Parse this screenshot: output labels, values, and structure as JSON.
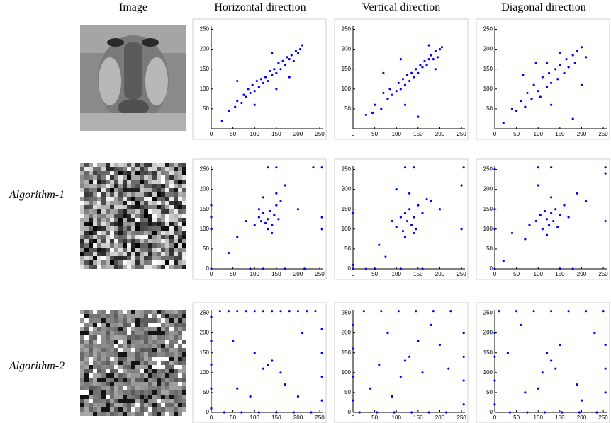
{
  "column_titles": [
    "Image",
    "Horizontal direction",
    "Vertical direction",
    "Diagonal direction"
  ],
  "row_labels": [
    "Algorithm-1",
    "Algorithm-2"
  ],
  "chart_data": [
    {
      "type": "scatter",
      "color": "#0000ff",
      "xlim": [
        0,
        258
      ],
      "ylim": [
        0,
        258
      ],
      "xticks": [
        0,
        50,
        100,
        150,
        200,
        250
      ],
      "yticks": [
        50,
        100,
        150,
        200,
        250
      ],
      "x": [
        25,
        40,
        55,
        60,
        70,
        75,
        80,
        85,
        90,
        95,
        100,
        105,
        110,
        115,
        120,
        125,
        130,
        135,
        140,
        145,
        150,
        155,
        160,
        165,
        170,
        175,
        180,
        185,
        190,
        195,
        200,
        205,
        210,
        100,
        150,
        60,
        140,
        180
      ],
      "values": [
        20,
        45,
        55,
        70,
        65,
        85,
        80,
        100,
        90,
        110,
        95,
        120,
        105,
        125,
        115,
        130,
        120,
        145,
        135,
        150,
        140,
        165,
        150,
        170,
        160,
        180,
        175,
        185,
        170,
        195,
        190,
        200,
        210,
        60,
        100,
        120,
        190,
        130
      ]
    },
    {
      "type": "scatter",
      "color": "#0000ff",
      "xlim": [
        0,
        258
      ],
      "ylim": [
        0,
        258
      ],
      "xticks": [
        0,
        50,
        100,
        150,
        200,
        250
      ],
      "yticks": [
        50,
        100,
        150,
        200,
        250
      ],
      "x": [
        30,
        45,
        50,
        65,
        70,
        80,
        85,
        90,
        100,
        105,
        110,
        115,
        120,
        125,
        130,
        135,
        140,
        145,
        150,
        155,
        160,
        165,
        170,
        175,
        180,
        185,
        190,
        195,
        200,
        205,
        120,
        150,
        70,
        190,
        110,
        175
      ],
      "values": [
        35,
        40,
        60,
        50,
        90,
        75,
        100,
        85,
        95,
        115,
        100,
        125,
        110,
        135,
        120,
        140,
        130,
        150,
        140,
        160,
        155,
        170,
        160,
        175,
        185,
        175,
        195,
        180,
        200,
        205,
        60,
        30,
        140,
        150,
        175,
        210
      ]
    },
    {
      "type": "scatter",
      "color": "#0000ff",
      "xlim": [
        0,
        258
      ],
      "ylim": [
        0,
        258
      ],
      "xticks": [
        0,
        50,
        100,
        150,
        200,
        250
      ],
      "yticks": [
        50,
        100,
        150,
        200,
        250
      ],
      "x": [
        20,
        40,
        50,
        60,
        70,
        75,
        85,
        90,
        100,
        105,
        110,
        120,
        125,
        130,
        140,
        145,
        150,
        160,
        165,
        170,
        180,
        185,
        190,
        200,
        210,
        65,
        95,
        130,
        150,
        180,
        120,
        200
      ],
      "values": [
        15,
        50,
        45,
        70,
        55,
        90,
        75,
        110,
        95,
        80,
        130,
        105,
        140,
        115,
        150,
        125,
        160,
        140,
        175,
        155,
        185,
        165,
        195,
        205,
        180,
        135,
        165,
        60,
        190,
        25,
        165,
        110
      ]
    },
    {
      "type": "scatter",
      "color": "#0000ff",
      "xlim": [
        0,
        258
      ],
      "ylim": [
        0,
        258
      ],
      "xticks": [
        0,
        50,
        100,
        150,
        200,
        250
      ],
      "yticks": [
        0,
        50,
        100,
        150,
        200,
        250
      ],
      "x": [
        0,
        0,
        0,
        0,
        100,
        110,
        115,
        120,
        125,
        130,
        135,
        140,
        145,
        150,
        155,
        160,
        120,
        130,
        140,
        110,
        150,
        80,
        170,
        200,
        60,
        40,
        255,
        255,
        255,
        130,
        150,
        170,
        90,
        120,
        215,
        235
      ],
      "values": [
        0,
        100,
        130,
        160,
        110,
        130,
        120,
        140,
        115,
        125,
        145,
        110,
        135,
        160,
        125,
        170,
        180,
        100,
        90,
        150,
        190,
        120,
        210,
        150,
        80,
        40,
        100,
        130,
        255,
        255,
        255,
        0,
        0,
        0,
        0,
        255
      ]
    },
    {
      "type": "scatter",
      "color": "#0000ff",
      "xlim": [
        0,
        258
      ],
      "ylim": [
        0,
        258
      ],
      "xticks": [
        0,
        50,
        100,
        150,
        200,
        250
      ],
      "yticks": [
        0,
        50,
        100,
        150,
        200,
        250
      ],
      "x": [
        0,
        0,
        0,
        90,
        100,
        110,
        115,
        120,
        125,
        130,
        135,
        140,
        145,
        150,
        160,
        170,
        120,
        130,
        100,
        140,
        180,
        200,
        60,
        75,
        250,
        250,
        255,
        120,
        140,
        30,
        160,
        50,
        110
      ],
      "values": [
        0,
        10,
        140,
        120,
        105,
        130,
        95,
        140,
        120,
        150,
        110,
        130,
        100,
        160,
        140,
        175,
        80,
        190,
        200,
        90,
        170,
        150,
        60,
        30,
        100,
        210,
        255,
        255,
        255,
        0,
        0,
        0,
        0
      ]
    },
    {
      "type": "scatter",
      "color": "#0000ff",
      "xlim": [
        0,
        258
      ],
      "ylim": [
        0,
        258
      ],
      "xticks": [
        0,
        50,
        100,
        150,
        200,
        250
      ],
      "yticks": [
        0,
        50,
        100,
        150,
        200,
        250
      ],
      "x": [
        0,
        0,
        0,
        0,
        95,
        105,
        110,
        115,
        120,
        125,
        130,
        135,
        140,
        145,
        150,
        160,
        130,
        120,
        100,
        170,
        190,
        210,
        70,
        80,
        40,
        255,
        255,
        255,
        100,
        130,
        150,
        180,
        20
      ],
      "values": [
        0,
        100,
        150,
        250,
        120,
        135,
        100,
        145,
        125,
        110,
        140,
        120,
        150,
        105,
        135,
        160,
        180,
        85,
        210,
        130,
        190,
        170,
        75,
        110,
        90,
        120,
        240,
        255,
        255,
        255,
        0,
        0,
        20
      ]
    },
    {
      "type": "scatter",
      "color": "#0000ff",
      "xlim": [
        0,
        258
      ],
      "ylim": [
        0,
        258
      ],
      "xticks": [
        0,
        50,
        100,
        150,
        200,
        250
      ],
      "yticks": [
        0,
        50,
        100,
        150,
        200,
        250
      ],
      "x": [
        0,
        0,
        0,
        0,
        0,
        20,
        40,
        60,
        80,
        100,
        120,
        140,
        160,
        180,
        200,
        220,
        240,
        255,
        255,
        255,
        255,
        30,
        70,
        110,
        150,
        190,
        230,
        50,
        90,
        130,
        170,
        210,
        120,
        140,
        100,
        160,
        60,
        200
      ],
      "values": [
        10,
        60,
        120,
        180,
        240,
        255,
        255,
        255,
        255,
        255,
        255,
        255,
        255,
        255,
        255,
        255,
        255,
        30,
        90,
        150,
        210,
        0,
        0,
        0,
        0,
        0,
        0,
        180,
        40,
        120,
        70,
        200,
        110,
        130,
        150,
        100,
        60,
        40
      ]
    },
    {
      "type": "scatter",
      "color": "#0000ff",
      "xlim": [
        0,
        258
      ],
      "ylim": [
        0,
        258
      ],
      "xticks": [
        0,
        50,
        100,
        150,
        200,
        250
      ],
      "yticks": [
        0,
        50,
        100,
        150,
        200,
        250
      ],
      "x": [
        0,
        0,
        0,
        0,
        25,
        65,
        105,
        145,
        185,
        225,
        255,
        255,
        255,
        255,
        15,
        55,
        95,
        135,
        175,
        215,
        40,
        80,
        120,
        160,
        200,
        130,
        110,
        150,
        90,
        60,
        180,
        220
      ],
      "values": [
        30,
        90,
        160,
        220,
        255,
        255,
        255,
        255,
        255,
        255,
        20,
        80,
        140,
        200,
        0,
        0,
        0,
        0,
        0,
        0,
        60,
        200,
        130,
        100,
        170,
        140,
        90,
        180,
        40,
        120,
        220,
        110
      ]
    },
    {
      "type": "scatter",
      "color": "#0000ff",
      "xlim": [
        0,
        258
      ],
      "ylim": [
        0,
        258
      ],
      "xticks": [
        0,
        50,
        100,
        150,
        200,
        250
      ],
      "yticks": [
        0,
        50,
        100,
        150,
        200,
        250
      ],
      "x": [
        0,
        0,
        0,
        0,
        10,
        50,
        90,
        130,
        170,
        210,
        250,
        255,
        255,
        255,
        35,
        75,
        115,
        155,
        195,
        235,
        30,
        70,
        110,
        150,
        190,
        230,
        130,
        140,
        120,
        60,
        200,
        100
      ],
      "values": [
        20,
        80,
        140,
        200,
        255,
        255,
        255,
        255,
        255,
        255,
        255,
        50,
        110,
        170,
        0,
        0,
        0,
        0,
        0,
        0,
        150,
        50,
        100,
        170,
        70,
        200,
        130,
        110,
        150,
        220,
        30,
        60
      ]
    }
  ]
}
